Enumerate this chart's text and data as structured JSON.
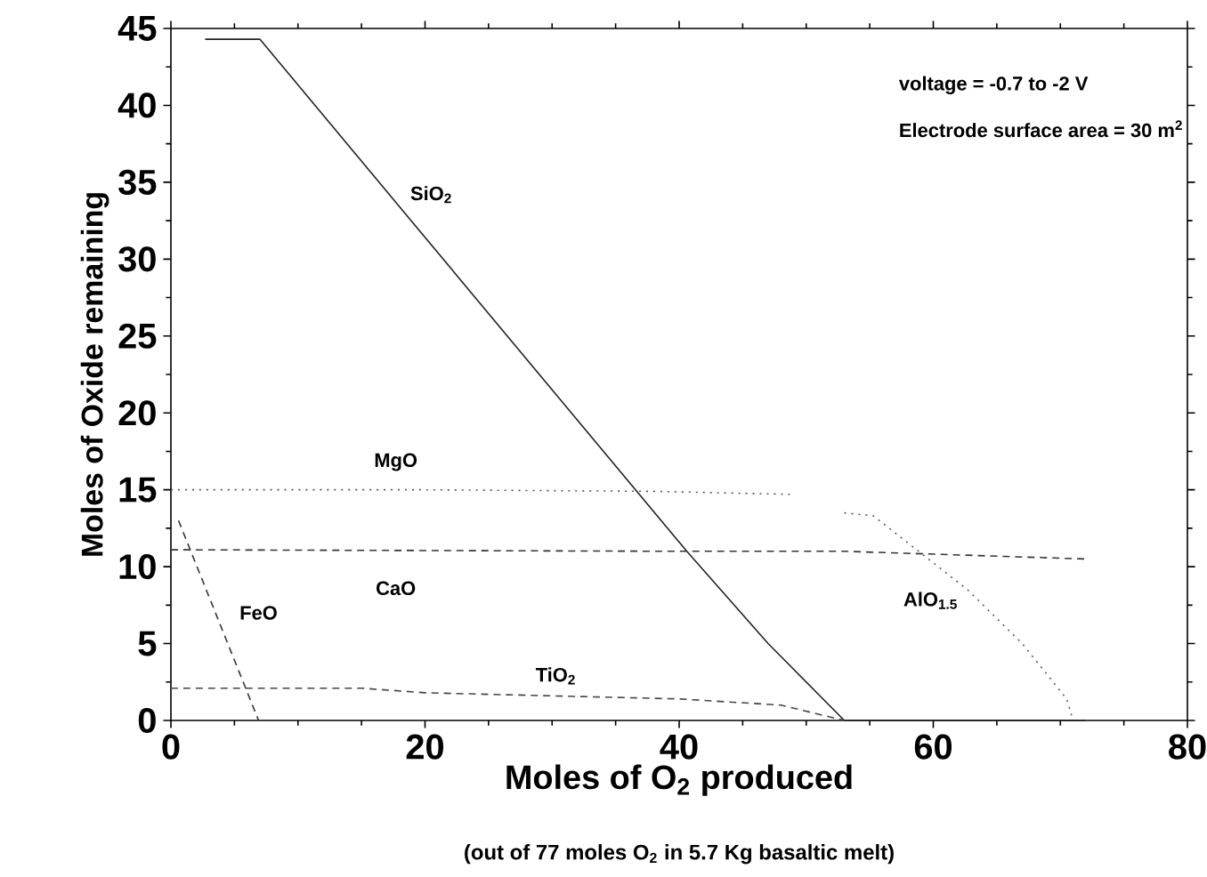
{
  "chart_data": {
    "type": "line",
    "xlabel": "Moles of O$_{2}$ produced",
    "ylabel": "Moles of Oxide remaining",
    "annotations": [
      "voltage = -0.7 to -2 V",
      "Electrode surface area = 30 m$^{2}$",
      "(out of 77 moles O$_{2}$ in 5.7 Kg basaltic melt)"
    ],
    "xlim": [
      0,
      80
    ],
    "ylim": [
      0,
      45
    ],
    "xticks": [
      0,
      20,
      40,
      60,
      80
    ],
    "yticks": [
      0,
      5,
      10,
      15,
      20,
      25,
      30,
      35,
      40,
      45
    ],
    "grid": false,
    "series": [
      {
        "name": "SiO$_{2}$",
        "color": "#222222",
        "line_style": "solid",
        "x": [
          2.7,
          7,
          40.6,
          47,
          53,
          72
        ],
        "values": [
          44.3,
          44.3,
          11,
          5,
          0,
          0
        ]
      },
      {
        "name": "MgO",
        "color": "#555555",
        "line_style": "dotted",
        "x": [
          0,
          20,
          38,
          49
        ],
        "values": [
          15,
          15,
          14.9,
          14.7
        ]
      },
      {
        "name": "CaO",
        "color": "#333333",
        "line_style": "dashed",
        "x": [
          0,
          40.6,
          53,
          72
        ],
        "values": [
          11.1,
          11,
          11,
          10.5
        ]
      },
      {
        "name": "FeO",
        "color": "#333333",
        "line_style": "dashed",
        "x": [
          0.6,
          6.9
        ],
        "values": [
          13,
          0
        ]
      },
      {
        "name": "TiO$_{2}$",
        "color": "#444444",
        "line_style": "dashed",
        "x": [
          0,
          15,
          20,
          40,
          48,
          53
        ],
        "values": [
          2.1,
          2.1,
          1.8,
          1.4,
          1,
          0
        ]
      },
      {
        "name": "AlO$_{1.5}$",
        "color": "#555555",
        "line_style": "dotted",
        "x": [
          53,
          55.3,
          62.7,
          67,
          70.5,
          71
        ],
        "values": [
          13.5,
          13.3,
          8.5,
          5,
          1.4,
          0
        ]
      }
    ]
  }
}
